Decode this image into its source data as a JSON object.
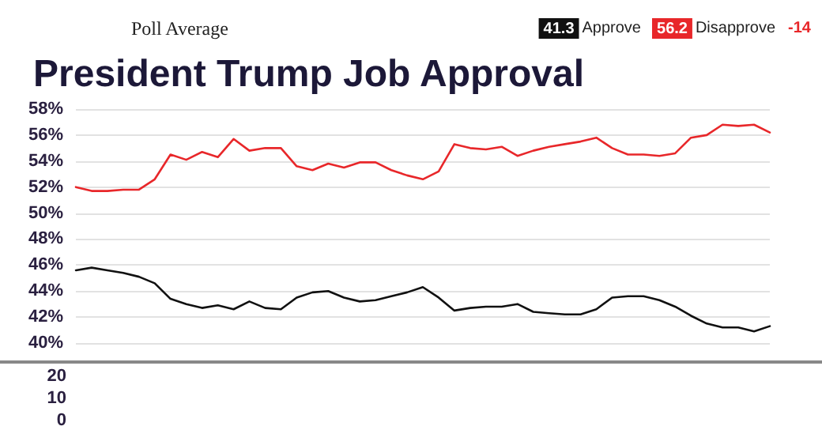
{
  "chart_data": [
    {
      "type": "line",
      "title": "President Trump Job Approval",
      "subtitle": "Poll Average",
      "annotations": [
        "41.3",
        "56.2",
        "-14"
      ],
      "categories": [
        null,
        null,
        null,
        null,
        null,
        null,
        null,
        null,
        null,
        null,
        null,
        null,
        null,
        null,
        null,
        null,
        null,
        null,
        null,
        null,
        null,
        null,
        null,
        null,
        null,
        null,
        null,
        null,
        null,
        null,
        null,
        null,
        null,
        null,
        null,
        null,
        null,
        null,
        null,
        null,
        null,
        null,
        null,
        null,
        null
      ],
      "series": [
        {
          "name": "Approve",
          "color": "#111111",
          "values": [
            45.6,
            45.8,
            45.6,
            45.4,
            45.1,
            44.6,
            43.4,
            43.0,
            42.7,
            42.9,
            42.6,
            43.2,
            42.7,
            42.6,
            43.5,
            43.9,
            44.0,
            43.5,
            43.2,
            43.3,
            43.6,
            43.9,
            44.3,
            43.5,
            42.5,
            42.7,
            42.8,
            42.8,
            43.0,
            42.4,
            42.3,
            42.2,
            42.2,
            42.6,
            43.5,
            43.6,
            43.6,
            43.3,
            42.8,
            42.1,
            41.5,
            41.2,
            41.2,
            40.9,
            41.3
          ]
        },
        {
          "name": "Disapprove",
          "color": "#e8272a",
          "values": [
            52.0,
            51.7,
            51.7,
            51.8,
            51.8,
            52.6,
            54.5,
            54.1,
            54.7,
            54.3,
            55.7,
            54.8,
            55.0,
            55.0,
            53.6,
            53.3,
            53.8,
            53.5,
            53.9,
            53.9,
            53.3,
            52.9,
            52.6,
            53.2,
            55.3,
            55.0,
            54.9,
            55.1,
            54.4,
            54.8,
            55.1,
            55.3,
            55.5,
            55.8,
            55.0,
            54.5,
            54.5,
            54.4,
            54.6,
            55.8,
            56.0,
            56.8,
            56.7,
            56.8,
            56.2
          ]
        }
      ],
      "ylim": [
        40,
        58
      ],
      "yticks": [
        {
          "value": 40,
          "label": "40%"
        },
        {
          "value": 42,
          "label": "42%"
        },
        {
          "value": 44,
          "label": "44%"
        },
        {
          "value": 46,
          "label": "46%"
        },
        {
          "value": 48,
          "label": "48%"
        },
        {
          "value": 50,
          "label": "50%"
        },
        {
          "value": 52,
          "label": "52%"
        },
        {
          "value": 54,
          "label": "54%"
        },
        {
          "value": 56,
          "label": "56%"
        },
        {
          "value": 58,
          "label": "58%"
        }
      ],
      "grid": "y",
      "legend": "top right",
      "marker": "none",
      "line_style": "solid",
      "tick_labels": "y"
    },
    {
      "type": "other",
      "annotations": [
        "20",
        "10",
        "0"
      ]
    }
  ]
}
